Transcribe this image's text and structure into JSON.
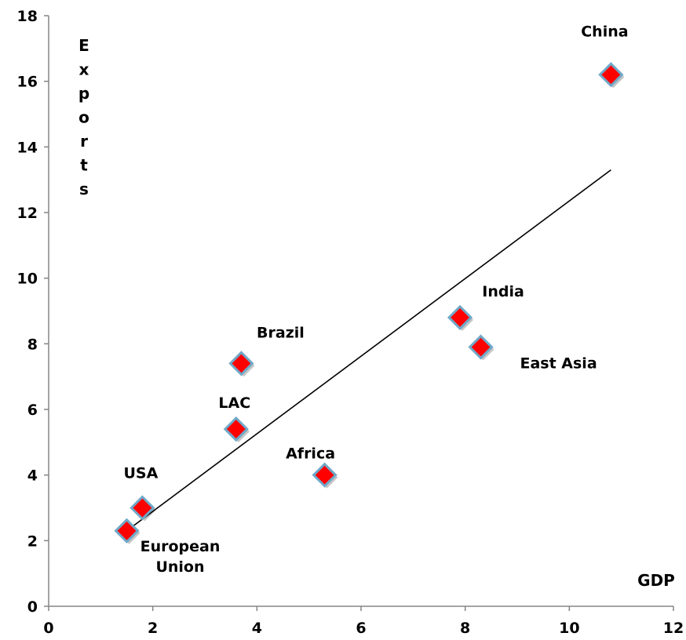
{
  "chart_data": {
    "type": "scatter",
    "title": "",
    "xlabel": "GDP",
    "ylabel": "Exports",
    "xlim": [
      0,
      12
    ],
    "ylim": [
      0,
      18
    ],
    "x_ticks": [
      0,
      2,
      4,
      6,
      8,
      10,
      12
    ],
    "y_ticks": [
      0,
      2,
      4,
      6,
      8,
      10,
      12,
      14,
      16,
      18
    ],
    "grid": false,
    "marker": {
      "shape": "diamond",
      "fill": "#ff0000",
      "stroke": "#6fa8c8"
    },
    "points": [
      {
        "label": "European Union",
        "label_lines": [
          "European",
          "Union"
        ],
        "x": 1.5,
        "y": 2.3
      },
      {
        "label": "USA",
        "x": 1.8,
        "y": 3.0
      },
      {
        "label": "LAC",
        "x": 3.6,
        "y": 5.4
      },
      {
        "label": "Brazil",
        "x": 3.7,
        "y": 7.4
      },
      {
        "label": "Africa",
        "x": 5.3,
        "y": 4.0
      },
      {
        "label": "India",
        "x": 7.9,
        "y": 8.8
      },
      {
        "label": "East Asia",
        "x": 8.3,
        "y": 7.9
      },
      {
        "label": "China",
        "x": 10.8,
        "y": 16.2
      }
    ],
    "trendline": {
      "x": [
        1.5,
        10.8
      ],
      "y": [
        2.3,
        13.3
      ],
      "color": "#000000"
    }
  }
}
